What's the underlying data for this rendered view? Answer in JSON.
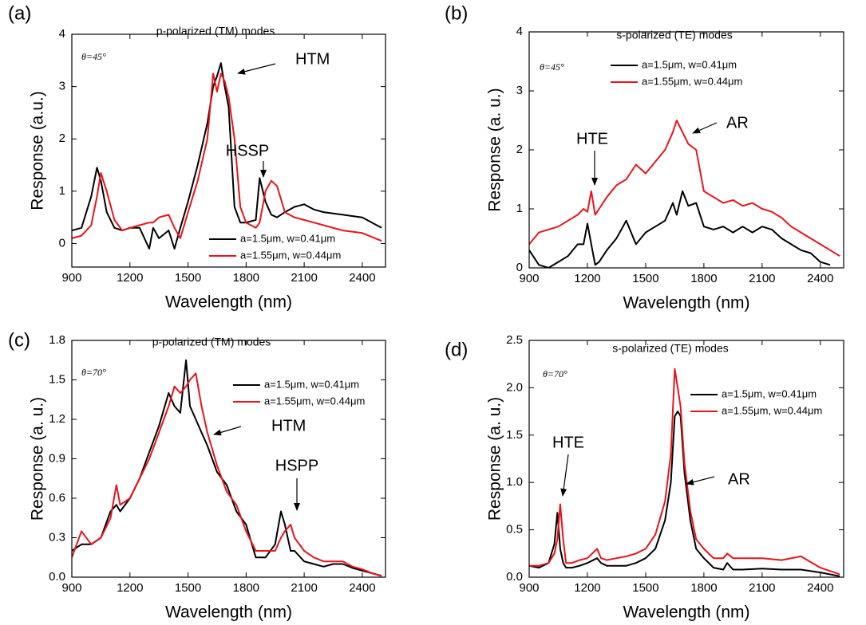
{
  "chart_data": [
    {
      "type": "line",
      "panel": "(a)",
      "title": "p-polarized (TM) modes",
      "angle": "θ=45°",
      "xlabel": "Wavelength (nm)",
      "ylabel": "Response (a.u.)",
      "xlim": [
        900,
        2520
      ],
      "ylim": [
        -0.45,
        4
      ],
      "xticks": [
        900,
        1200,
        1500,
        1800,
        2100,
        2400
      ],
      "yticks": [
        0,
        1,
        2,
        3,
        4
      ],
      "legend": "lower right",
      "annotations": [
        "HTM",
        "HSSP"
      ],
      "x": [
        900,
        950,
        1000,
        1030,
        1050,
        1080,
        1120,
        1160,
        1200,
        1250,
        1300,
        1320,
        1350,
        1400,
        1430,
        1460,
        1500,
        1550,
        1600,
        1630,
        1650,
        1670,
        1690,
        1710,
        1740,
        1770,
        1800,
        1850,
        1870,
        1900,
        1930,
        1960,
        2000,
        2050,
        2100,
        2150,
        2200,
        2300,
        2400,
        2500
      ],
      "series": [
        {
          "name": "a=1.5μm, w=0.41μm",
          "color": "#000000",
          "values": [
            0.25,
            0.3,
            0.9,
            1.45,
            1.2,
            0.6,
            0.3,
            0.25,
            0.3,
            0.3,
            -0.1,
            0.3,
            0.1,
            0.25,
            -0.1,
            0.3,
            0.8,
            1.5,
            2.3,
            3.0,
            3.2,
            3.45,
            3.0,
            2.6,
            0.7,
            0.4,
            0.4,
            0.45,
            1.25,
            0.8,
            0.55,
            0.5,
            0.6,
            0.7,
            0.75,
            0.65,
            0.6,
            0.55,
            0.5,
            0.3
          ]
        },
        {
          "name": "a=1.55μm, w=0.44μm",
          "color": "#e8141a",
          "values": [
            0.1,
            0.15,
            0.35,
            0.9,
            1.35,
            1.0,
            0.45,
            0.25,
            0.3,
            0.35,
            0.4,
            0.4,
            0.5,
            0.55,
            0.3,
            0.1,
            0.6,
            1.2,
            2.0,
            3.25,
            2.9,
            3.25,
            3.1,
            2.8,
            2.0,
            0.7,
            0.4,
            0.3,
            0.4,
            1.0,
            1.2,
            1.1,
            0.6,
            0.5,
            0.45,
            0.4,
            0.35,
            0.25,
            0.2,
            0.05
          ]
        }
      ]
    },
    {
      "type": "line",
      "panel": "(b)",
      "title": "s-polarized (TE) modes",
      "angle": "θ=45°",
      "xlabel": "Wavelength (nm)",
      "ylabel": "Response (a. u.)",
      "xlim": [
        900,
        2520
      ],
      "ylim": [
        0,
        4
      ],
      "xticks": [
        900,
        1200,
        1500,
        1800,
        2100,
        2400
      ],
      "yticks": [
        0,
        1,
        2,
        3,
        4
      ],
      "legend": "upper center",
      "annotations": [
        "HTE",
        "AR"
      ],
      "x": [
        900,
        950,
        1000,
        1050,
        1100,
        1150,
        1180,
        1200,
        1220,
        1240,
        1260,
        1300,
        1350,
        1400,
        1450,
        1500,
        1550,
        1600,
        1640,
        1660,
        1690,
        1720,
        1760,
        1800,
        1850,
        1900,
        1950,
        2000,
        2050,
        2100,
        2150,
        2200,
        2250,
        2300,
        2350,
        2400,
        2450,
        2500
      ],
      "series": [
        {
          "name": "a=1.5μm, w=0.41μm",
          "color": "#000000",
          "values": [
            0.3,
            0.05,
            0.0,
            0.1,
            0.2,
            0.4,
            0.4,
            0.75,
            0.4,
            0.05,
            0.1,
            0.3,
            0.5,
            0.8,
            0.4,
            0.6,
            0.7,
            0.8,
            1.1,
            0.9,
            1.3,
            1.05,
            1.1,
            0.7,
            0.65,
            0.7,
            0.6,
            0.7,
            0.6,
            0.7,
            0.65,
            0.5,
            0.4,
            0.3,
            0.25,
            0.1,
            0.05,
            null
          ]
        },
        {
          "name": "a=1.55μm, w=0.44μm",
          "color": "#e8141a",
          "values": [
            0.4,
            0.6,
            0.65,
            0.7,
            0.8,
            0.9,
            1.0,
            0.95,
            1.3,
            0.9,
            1.0,
            1.2,
            1.4,
            1.5,
            1.75,
            1.6,
            1.8,
            2.0,
            2.3,
            2.5,
            2.3,
            2.1,
            2.0,
            1.3,
            1.2,
            1.1,
            1.15,
            1.05,
            1.1,
            1.0,
            0.95,
            0.85,
            0.7,
            0.6,
            0.5,
            0.4,
            0.3,
            0.2
          ]
        }
      ]
    },
    {
      "type": "line",
      "panel": "(c)",
      "title": "p-polarized (TM) modes",
      "angle": "θ=70°",
      "xlabel": "Wavelength (nm)",
      "ylabel": "Response (a. u.)",
      "xlim": [
        900,
        2520
      ],
      "ylim": [
        0,
        1.8
      ],
      "xticks": [
        900,
        1200,
        1500,
        1800,
        2100,
        2400
      ],
      "yticks": [
        {
          "value": 0,
          "label": "0.0"
        },
        0.3,
        0.6,
        0.9,
        1.2,
        1.5,
        1.8
      ],
      "legend": "upper right",
      "annotations": [
        "HTM",
        "HSPP"
      ],
      "x": [
        900,
        950,
        1000,
        1050,
        1100,
        1130,
        1150,
        1200,
        1250,
        1300,
        1350,
        1400,
        1430,
        1460,
        1490,
        1510,
        1540,
        1570,
        1600,
        1650,
        1700,
        1750,
        1800,
        1850,
        1900,
        1950,
        1980,
        2000,
        2030,
        2050,
        2100,
        2150,
        2200,
        2250,
        2300,
        2350,
        2400,
        2450,
        2500
      ],
      "series": [
        {
          "name": "a=1.5μm, w=0.41μm",
          "color": "#000000",
          "values": [
            0.2,
            0.25,
            0.25,
            0.3,
            0.5,
            0.55,
            0.5,
            0.6,
            0.75,
            0.95,
            1.15,
            1.4,
            1.3,
            1.25,
            1.65,
            1.3,
            1.2,
            1.1,
            1.0,
            0.8,
            0.7,
            0.5,
            0.4,
            0.15,
            0.15,
            0.25,
            0.5,
            0.4,
            0.2,
            0.2,
            0.12,
            0.1,
            0.08,
            0.1,
            0.1,
            0.07,
            0.05,
            0.03,
            0.01
          ]
        },
        {
          "name": "a=1.55μm, w=0.44μm",
          "color": "#e8141a",
          "values": [
            0.15,
            0.35,
            0.25,
            0.3,
            0.45,
            0.7,
            0.55,
            0.6,
            0.75,
            0.9,
            1.1,
            1.3,
            1.45,
            1.4,
            1.45,
            1.5,
            1.55,
            1.3,
            1.1,
            0.85,
            0.65,
            0.55,
            0.35,
            0.2,
            0.2,
            0.2,
            0.3,
            0.35,
            0.4,
            0.3,
            0.2,
            0.15,
            0.12,
            0.12,
            0.12,
            0.08,
            0.06,
            0.03,
            0.01
          ]
        }
      ]
    },
    {
      "type": "line",
      "panel": "(d)",
      "title": "s-polarized (TE) modes",
      "angle": "θ=70°",
      "xlabel": "Wavelength (nm)",
      "ylabel": "Response (a. u.)",
      "xlim": [
        900,
        2520
      ],
      "ylim": [
        0,
        2.5
      ],
      "xticks": [
        900,
        1200,
        1500,
        1800,
        2100,
        2400
      ],
      "yticks": [
        {
          "value": 0,
          "label": "0.0"
        },
        0.5,
        {
          "value": 1,
          "label": "1.0"
        },
        1.5,
        {
          "value": 2,
          "label": "2.0"
        },
        2.5
      ],
      "legend": "upper right",
      "annotations": [
        "HTE",
        "AR"
      ],
      "x": [
        900,
        950,
        1000,
        1030,
        1045,
        1060,
        1075,
        1090,
        1120,
        1160,
        1200,
        1250,
        1270,
        1300,
        1350,
        1400,
        1450,
        1500,
        1550,
        1600,
        1630,
        1650,
        1665,
        1680,
        1700,
        1730,
        1760,
        1800,
        1850,
        1900,
        1920,
        1950,
        2000,
        2100,
        2200,
        2300,
        2400,
        2500
      ],
      "series": [
        {
          "name": "a=1.5μm, w=0.41μm",
          "color": "#000000",
          "values": [
            0.12,
            0.1,
            0.15,
            0.35,
            0.68,
            0.3,
            0.15,
            0.1,
            0.1,
            0.12,
            0.15,
            0.2,
            0.15,
            0.12,
            0.12,
            0.12,
            0.15,
            0.2,
            0.3,
            0.6,
            1.0,
            1.7,
            1.75,
            1.7,
            1.1,
            0.6,
            0.3,
            0.2,
            0.1,
            0.08,
            0.15,
            0.08,
            0.08,
            0.09,
            0.08,
            0.08,
            0.05,
            0.01
          ]
        },
        {
          "name": "a=1.55μm, w=0.44μm",
          "color": "#e8141a",
          "values": [
            0.12,
            0.12,
            0.15,
            0.25,
            0.4,
            0.77,
            0.4,
            0.15,
            0.15,
            0.18,
            0.2,
            0.3,
            0.2,
            0.18,
            0.2,
            0.22,
            0.25,
            0.3,
            0.45,
            0.8,
            1.3,
            2.2,
            2.0,
            1.8,
            1.2,
            0.7,
            0.4,
            0.3,
            0.2,
            0.2,
            0.25,
            0.2,
            0.2,
            0.2,
            0.18,
            0.22,
            0.1,
            0.03
          ]
        }
      ]
    }
  ]
}
